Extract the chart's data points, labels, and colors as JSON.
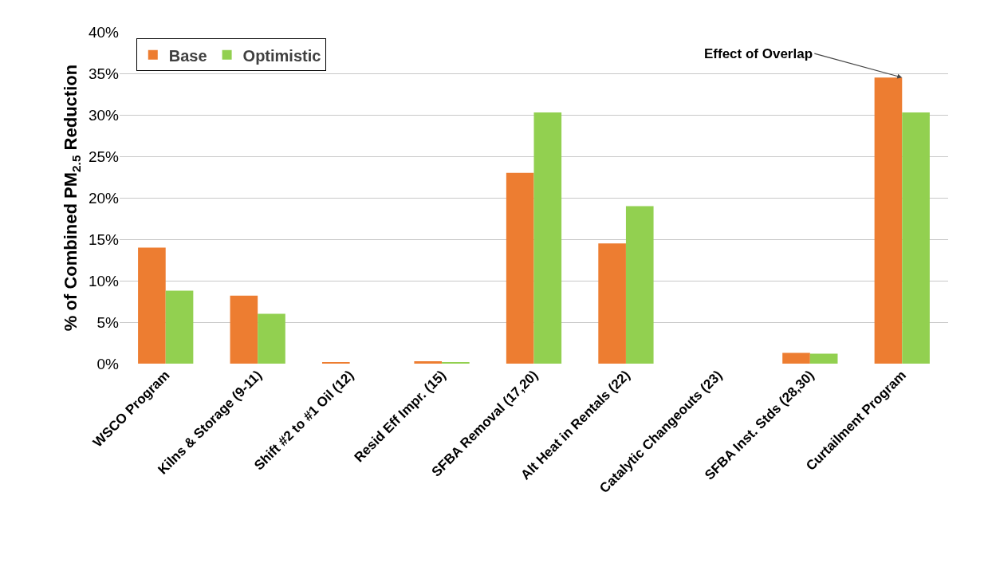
{
  "chart_data": {
    "type": "bar",
    "ylabel": "% of Combined PM$_{2.5}$ Reduction",
    "categories": [
      "WSCO Program",
      "Kilns & Storage (9-11)",
      "Shift #2 to #1 Oil (12)",
      "Resid Eff Impr. (15)",
      "SFBA Removal (17,20)",
      "Alt Heat in Rentals (22)",
      "Catalytic Changeouts (23)",
      "SFBA Inst. Stds (28,30)",
      "Curtailment Program"
    ],
    "series": [
      {
        "name": "Base",
        "color": "#ed7d31",
        "values": [
          14,
          8.2,
          0.2,
          0.3,
          23,
          14.5,
          0,
          1.3,
          34.5
        ]
      },
      {
        "name": "Optimistic",
        "color": "#92d050",
        "values": [
          8.8,
          6,
          0,
          0.2,
          30.3,
          19,
          0,
          1.2,
          30.3
        ]
      }
    ],
    "ylim": [
      0,
      40
    ],
    "yticks": [
      {
        "value": 0,
        "label": "0%"
      },
      {
        "value": 5,
        "label": "5%"
      },
      {
        "value": 10,
        "label": "10%"
      },
      {
        "value": 15,
        "label": "15%"
      },
      {
        "value": 20,
        "label": "20%"
      },
      {
        "value": 25,
        "label": "25%"
      },
      {
        "value": 30,
        "label": "30%"
      },
      {
        "value": 35,
        "label": "35%"
      },
      {
        "value": 40,
        "label": "40%"
      }
    ],
    "grid": "y",
    "legend": "top left",
    "annotations": [
      {
        "text": "Effect of Overlap",
        "x": "Curtailment Program",
        "y": 34.5
      }
    ]
  }
}
